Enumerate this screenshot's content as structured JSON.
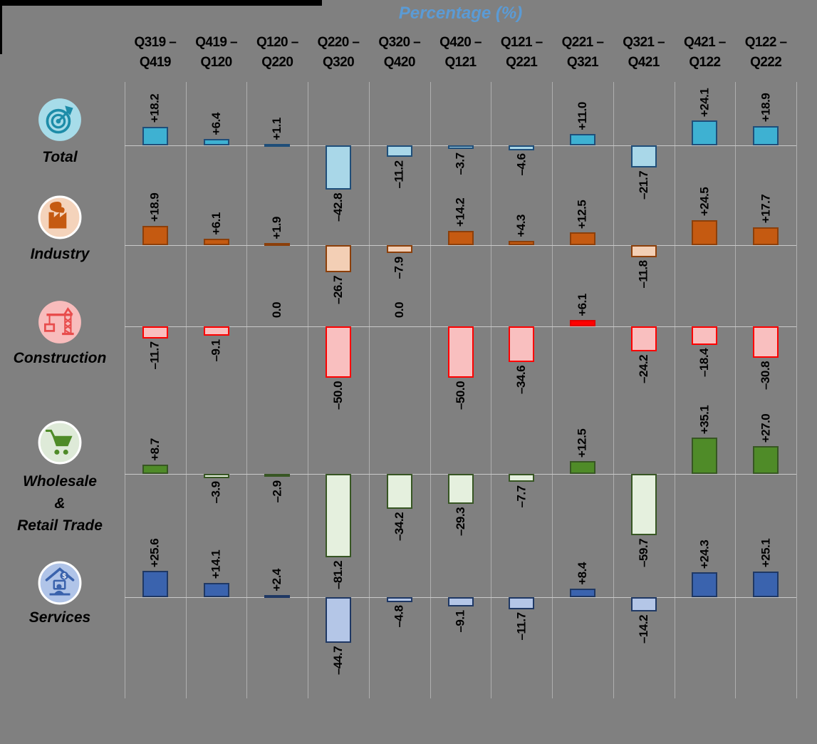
{
  "title": "Percentage (%)",
  "background_color": "#808080",
  "title_color": "#5B9BD5",
  "chart_data": {
    "type": "bar",
    "orientation": "vertical",
    "unit": "%",
    "title": "Percentage (%)",
    "grid": true,
    "legend_position": "left-row-icons",
    "categories": [
      "Q319 – Q419",
      "Q419 – Q120",
      "Q120 – Q220",
      "Q220 – Q320",
      "Q320 – Q420",
      "Q420 – Q121",
      "Q121 – Q221",
      "Q221 – Q321",
      "Q321 – Q421",
      "Q421 – Q122",
      "Q122 – Q222"
    ],
    "category_lines": [
      [
        "Q319 –",
        "Q419"
      ],
      [
        "Q419 –",
        "Q120"
      ],
      [
        "Q120 –",
        "Q220"
      ],
      [
        "Q220 –",
        "Q320"
      ],
      [
        "Q320 –",
        "Q420"
      ],
      [
        "Q420 –",
        "Q121"
      ],
      [
        "Q121 –",
        "Q221"
      ],
      [
        "Q221 –",
        "Q321"
      ],
      [
        "Q321 –",
        "Q421"
      ],
      [
        "Q421 –",
        "Q122"
      ],
      [
        "Q122 –",
        "Q222"
      ]
    ],
    "series": [
      {
        "name": "Total",
        "name_lines": [
          "Total"
        ],
        "icon": "target-icon",
        "values": [
          18.2,
          6.4,
          1.1,
          -42.8,
          -11.2,
          -3.7,
          -4.6,
          11.0,
          -21.7,
          24.1,
          18.9
        ],
        "labels": [
          "+18.2",
          "+6.4",
          "+1.1",
          "–42.8",
          "–11.2",
          "–3.7",
          "–4.6",
          "+11.0",
          "–21.7",
          "+24.1",
          "+18.9"
        ],
        "colors": {
          "positive_fill": "#3EB1D2",
          "negative_fill": "#A9D7E8",
          "positive_border": "#1F4E79",
          "negative_border": "#1F4E79",
          "icon_bg": "#A7DCE9",
          "icon_fg": "#1D8CA8"
        }
      },
      {
        "name": "Industry",
        "name_lines": [
          "Industry"
        ],
        "icon": "factory-icon",
        "values": [
          18.9,
          6.1,
          1.9,
          -26.7,
          -7.9,
          14.2,
          4.3,
          12.5,
          -11.8,
          24.5,
          17.7
        ],
        "labels": [
          "+18.9",
          "+6.1",
          "+1.9",
          "–26.7",
          "–7.9",
          "+14.2",
          "+4.3",
          "+12.5",
          "–11.8",
          "+24.5",
          "+17.7"
        ],
        "colors": {
          "positive_fill": "#C55A11",
          "negative_fill": "#F3CFB5",
          "positive_border": "#8C3F0A",
          "negative_border": "#8C3F0A",
          "icon_bg": "#F4D3BB",
          "icon_fg": "#C55A11"
        }
      },
      {
        "name": "Construction",
        "name_lines": [
          "Construction"
        ],
        "icon": "crane-icon",
        "values": [
          -11.7,
          -9.1,
          0.0,
          -50.0,
          0.0,
          -50.0,
          -34.6,
          6.1,
          -24.2,
          -18.4,
          -30.8
        ],
        "labels": [
          "–11.7",
          "–9.1",
          "0.0",
          "–50.0",
          "0.0",
          "–50.0",
          "–34.6",
          "+6.1",
          "–24.2",
          "–18.4",
          "–30.8"
        ],
        "colors": {
          "positive_fill": "#FF0000",
          "negative_fill": "#F9BFBF",
          "positive_border": "#E00000",
          "negative_border": "#FF0000",
          "icon_bg": "#F8BCBC",
          "icon_fg": "#E84C4C"
        }
      },
      {
        "name": "Wholesale & Retail Trade",
        "name_lines": [
          "Wholesale",
          "&",
          "Retail Trade"
        ],
        "icon": "cart-icon",
        "values": [
          8.7,
          -3.9,
          -2.9,
          -81.2,
          -34.2,
          -29.3,
          -7.7,
          12.5,
          -59.7,
          35.1,
          27.0
        ],
        "labels": [
          "+8.7",
          "–3.9",
          "–2.9",
          "–81.2",
          "–34.2",
          "–29.3",
          "–7.7",
          "+12.5",
          "–59.7",
          "+35.1",
          "+27.0"
        ],
        "colors": {
          "positive_fill": "#4F8B28",
          "negative_fill": "#E5F0DE",
          "positive_border": "#375623",
          "negative_border": "#375623",
          "icon_bg": "#DEEAD8",
          "icon_fg": "#4F8B28"
        }
      },
      {
        "name": "Services",
        "name_lines": [
          "Services"
        ],
        "icon": "services-icon",
        "values": [
          25.6,
          14.1,
          2.4,
          -44.7,
          -4.8,
          -9.1,
          -11.7,
          8.4,
          -14.2,
          24.3,
          25.1
        ],
        "labels": [
          "+25.6",
          "+14.1",
          "+2.4",
          "–44.7",
          "–4.8",
          "–9.1",
          "–11.7",
          "+8.4",
          "–14.2",
          "+24.3",
          "+25.1"
        ],
        "colors": {
          "positive_fill": "#3A63AE",
          "negative_fill": "#B4C6E7",
          "positive_border": "#1F3864",
          "negative_border": "#1F3864",
          "icon_bg": "#B0C4E8",
          "icon_fg": "#3A62AC"
        }
      }
    ]
  }
}
